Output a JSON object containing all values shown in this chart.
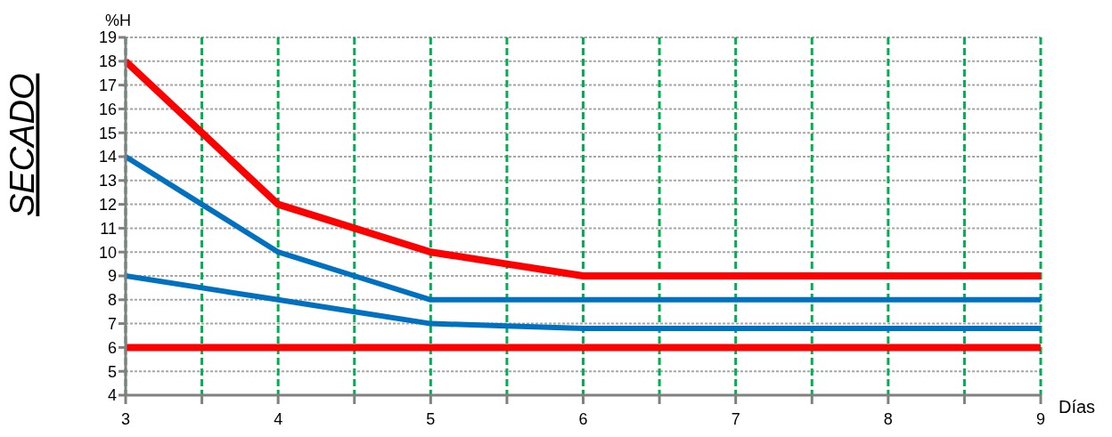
{
  "chart_data": {
    "type": "line",
    "ylabel": "SECADO",
    "xlabel": "Días",
    "annotations": [
      "%H"
    ],
    "x": [
      3,
      3.5,
      4,
      4.5,
      5,
      5.5,
      6,
      6.5,
      7,
      7.5,
      8,
      8.5,
      9
    ],
    "series": [
      {
        "color": "#ff0000",
        "values": [
          18,
          15,
          12,
          11,
          10,
          9.5,
          9,
          9,
          9,
          9,
          9,
          9,
          9
        ]
      },
      {
        "color": "#0070c0",
        "values": [
          14,
          12,
          10,
          9,
          8,
          8,
          8,
          8,
          8,
          8,
          8,
          8,
          8
        ]
      },
      {
        "color": "#0070c0",
        "values": [
          9,
          8.5,
          8,
          7.5,
          7,
          6.9,
          6.8,
          6.8,
          6.8,
          6.8,
          6.8,
          6.8,
          6.8
        ]
      },
      {
        "color": "#ff0000",
        "values": [
          6,
          6,
          6,
          6,
          6,
          6,
          6,
          6,
          6,
          6,
          6,
          6,
          6
        ]
      }
    ],
    "xlim": [
      3,
      9
    ],
    "xticks": [
      3,
      {
        "value": 3.5,
        "label": null
      },
      4,
      {
        "value": 4.5,
        "label": null
      },
      5,
      {
        "value": 5.5,
        "label": null
      },
      6,
      {
        "value": 6.5,
        "label": null
      },
      7,
      {
        "value": 7.5,
        "label": null
      },
      8,
      {
        "value": 8.5,
        "label": null
      },
      9
    ],
    "ylim": [
      4,
      19
    ],
    "yticks": [
      4,
      5,
      6,
      7,
      8,
      9,
      10,
      11,
      12,
      13,
      14,
      15,
      16,
      17,
      18,
      19
    ],
    "grid": true,
    "marker": "none",
    "line_style": "solid"
  }
}
